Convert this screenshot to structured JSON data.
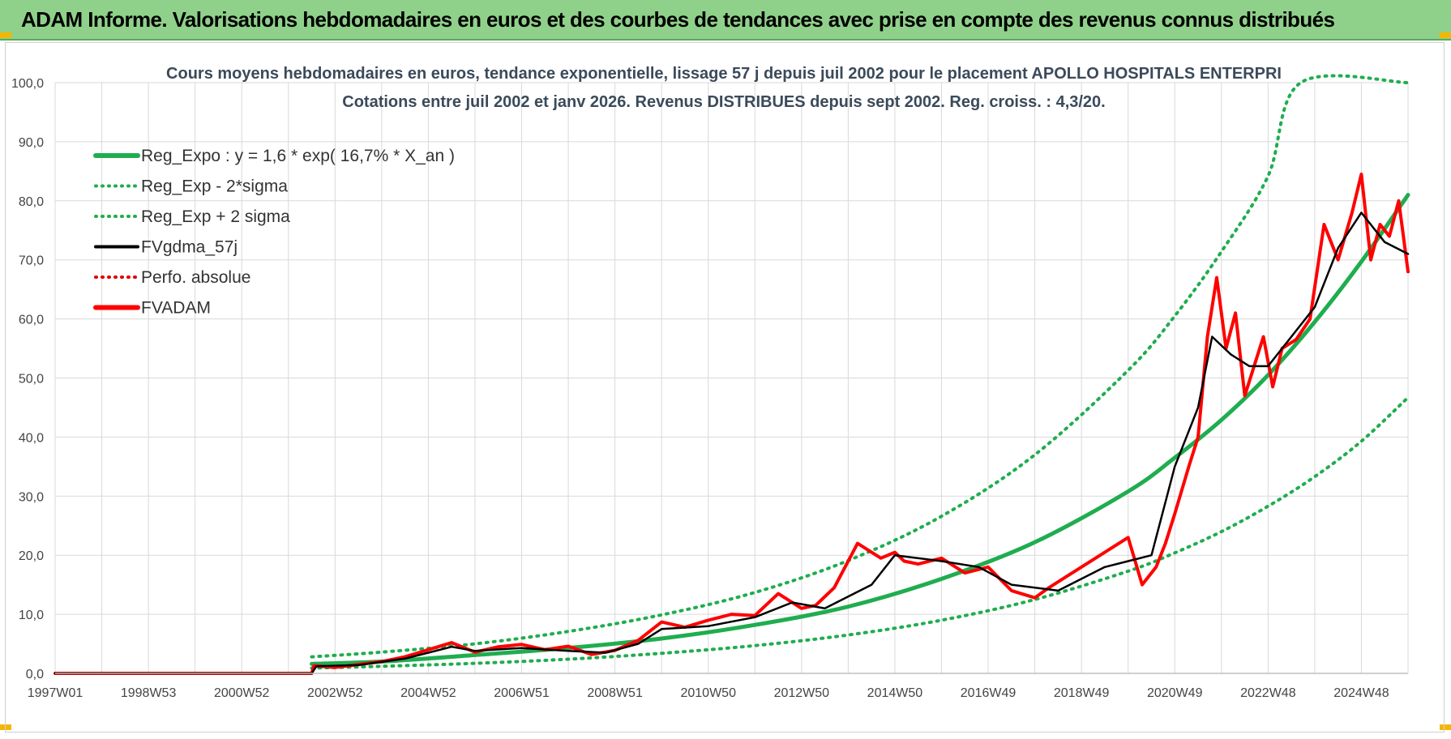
{
  "banner": {
    "title": "ADAM Informe. Valorisations hebdomadaires en euros et des courbes de tendances avec prise en compte des revenus connus distribués"
  },
  "colors": {
    "banner_bg": "#8fd18a",
    "trend_green": "#1fad4f",
    "perf_red": "#e00000",
    "fvadam_red": "#ff0000",
    "fvgdma_black": "#000000",
    "corner_accent": "#f2b705"
  },
  "chart_data": {
    "type": "line",
    "title_line1": "Cours moyens hebdomadaires en euros, tendance exponentielle, lissage 57 j depuis juil 2002 pour le placement APOLLO HOSPITALS ENTERPRI",
    "title_line2": "Cotations entre juil 2002 et janv 2026. Revenus DISTRIBUES depuis sept 2002. Reg. croiss. : 4,3/20.",
    "xlabel": "",
    "ylabel": "",
    "ylim": [
      0,
      100
    ],
    "yticks": [
      0,
      10,
      20,
      30,
      40,
      50,
      60,
      70,
      80,
      90,
      100
    ],
    "ytick_labels": [
      "0,0",
      "10,0",
      "20,0",
      "30,0",
      "40,0",
      "50,0",
      "60,0",
      "70,0",
      "80,0",
      "90,0",
      "100,0"
    ],
    "xlim": [
      1997.0,
      2026.0
    ],
    "xticks": [
      1997.0,
      1999.0,
      2001.0,
      2003.0,
      2005.0,
      2007.0,
      2009.0,
      2011.0,
      2013.0,
      2015.0,
      2017.0,
      2019.0,
      2021.0,
      2023.0,
      2025.0
    ],
    "xtick_labels": [
      "1997W01",
      "1998W53",
      "2000W52",
      "2002W52",
      "2004W52",
      "2006W51",
      "2008W51",
      "2010W50",
      "2012W50",
      "2014W50",
      "2016W49",
      "2018W49",
      "2020W49",
      "2022W48",
      "2024W48"
    ],
    "grid": true,
    "legend_position": "top-left",
    "legend": [
      {
        "name": "Reg_Expo : y = 1,6 * exp( 16,7% *  X_an )",
        "style": "solid-thick",
        "color": "#1fad4f"
      },
      {
        "name": "Reg_Exp - 2*sigma",
        "style": "dotted",
        "color": "#1fad4f"
      },
      {
        "name": "Reg_Exp + 2 sigma",
        "style": "dotted",
        "color": "#1fad4f"
      },
      {
        "name": "FVgdma_57j",
        "style": "solid",
        "color": "#000000"
      },
      {
        "name": "Perfo. absolue",
        "style": "dotted",
        "color": "#e00000"
      },
      {
        "name": "FVADAM",
        "style": "solid-thick",
        "color": "#ff0000"
      }
    ],
    "series": [
      {
        "name": "Reg_Expo : y = 1,6 * exp( 16,7% *  X_an )",
        "x": [
          2002.5,
          2004,
          2006,
          2008,
          2010,
          2012,
          2014,
          2016,
          2018,
          2020,
          2021,
          2022,
          2023,
          2024,
          2025,
          2026
        ],
        "values": [
          1.6,
          2.0,
          3.1,
          4.3,
          5.9,
          8.2,
          11.3,
          16.0,
          22.2,
          30.8,
          36.5,
          42.9,
          50.5,
          59.5,
          69.7,
          81.0
        ]
      },
      {
        "name": "Reg_Exp - 2*sigma",
        "x": [
          2002.5,
          2004,
          2006,
          2008,
          2010,
          2012,
          2014,
          2016,
          2018,
          2020,
          2021,
          2022,
          2023,
          2024,
          2025,
          2026
        ],
        "values": [
          0.9,
          1.2,
          1.7,
          2.4,
          3.4,
          4.7,
          6.5,
          9.0,
          12.5,
          17.3,
          20.4,
          24.0,
          28.3,
          33.3,
          39.3,
          46.7
        ]
      },
      {
        "name": "Reg_Exp + 2 sigma",
        "x": [
          2002.5,
          2004,
          2006,
          2008,
          2010,
          2012,
          2014,
          2016,
          2018,
          2020,
          2021,
          2022,
          2023,
          2023.7,
          2026
        ],
        "values": [
          2.8,
          3.6,
          5.0,
          7.1,
          9.9,
          13.7,
          19.1,
          26.6,
          37.0,
          51.3,
          60.5,
          71.4,
          84.2,
          100,
          100
        ]
      },
      {
        "name": "FVgdma_57j",
        "x": [
          1997.0,
          2002.5,
          2002.6,
          2003.5,
          2004.5,
          2005.5,
          2006.0,
          2007.0,
          2008.0,
          2008.8,
          2009.5,
          2010.0,
          2011.0,
          2012.0,
          2012.8,
          2013.5,
          2014.5,
          2015.0,
          2016.0,
          2016.8,
          2017.5,
          2018.5,
          2019.5,
          2020.0,
          2020.5,
          2021.0,
          2021.5,
          2021.8,
          2022.2,
          2022.6,
          2023.0,
          2023.5,
          2024.0,
          2024.5,
          2025.0,
          2025.5,
          2026.0
        ],
        "values": [
          0.0,
          0.0,
          1.2,
          1.4,
          2.5,
          4.5,
          3.8,
          4.3,
          3.8,
          3.5,
          5.0,
          7.5,
          8.0,
          9.5,
          12.0,
          11.0,
          15.0,
          20.0,
          19.0,
          18.0,
          15.0,
          14.0,
          18.0,
          19.0,
          20.0,
          35.0,
          45.0,
          57.0,
          54.0,
          52.0,
          52.0,
          57.0,
          62.0,
          72.0,
          78.0,
          73.0,
          71.0
        ]
      },
      {
        "name": "FVADAM",
        "x": [
          1997.0,
          2002.5,
          2002.55,
          2003.0,
          2003.5,
          2004.0,
          2004.5,
          2005.0,
          2005.5,
          2006.0,
          2006.5,
          2007.0,
          2007.5,
          2008.0,
          2008.5,
          2009.0,
          2009.5,
          2010.0,
          2010.5,
          2011.0,
          2011.5,
          2012.0,
          2012.5,
          2013.0,
          2013.3,
          2013.7,
          2014.2,
          2014.7,
          2015.0,
          2015.2,
          2015.5,
          2016.0,
          2016.5,
          2017.0,
          2017.5,
          2018.0,
          2018.3,
          2018.7,
          2019.0,
          2019.5,
          2020.0,
          2020.3,
          2020.6,
          2020.8,
          2021.0,
          2021.3,
          2021.5,
          2021.7,
          2021.9,
          2022.1,
          2022.3,
          2022.5,
          2022.7,
          2022.9,
          2023.1,
          2023.3,
          2023.6,
          2023.9,
          2024.2,
          2024.5,
          2024.8,
          2025.0,
          2025.2,
          2025.4,
          2025.6,
          2025.8,
          2026.0
        ],
        "values": [
          0.0,
          0.0,
          1.3,
          1.0,
          1.5,
          2.0,
          2.8,
          4.0,
          5.2,
          3.6,
          4.5,
          4.9,
          4.0,
          4.6,
          3.2,
          3.9,
          5.6,
          8.7,
          7.8,
          9.0,
          10.0,
          9.8,
          13.5,
          11.0,
          11.5,
          14.5,
          22.0,
          19.5,
          20.5,
          19.0,
          18.5,
          19.5,
          17.0,
          18.0,
          14.0,
          12.8,
          14.5,
          16.5,
          18.0,
          20.5,
          23.0,
          15.0,
          18.0,
          22.0,
          27.0,
          35.0,
          40.0,
          57.0,
          67.0,
          55.0,
          61.0,
          47.0,
          52.0,
          57.0,
          48.5,
          55.0,
          56.5,
          60.0,
          76.0,
          70.0,
          78.0,
          84.5,
          70.0,
          76.0,
          74.0,
          80.0,
          68.0
        ]
      }
    ]
  }
}
